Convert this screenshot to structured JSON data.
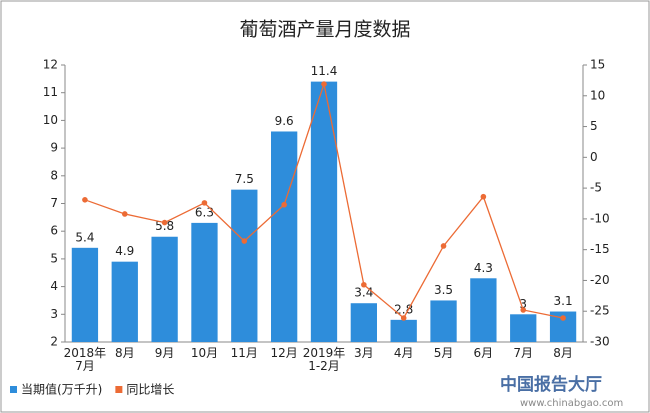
{
  "chart_data": {
    "type": "bar-line",
    "title": "葡萄酒产量月度数据",
    "categories": [
      "2018年\n7月",
      "8月",
      "9月",
      "10月",
      "11月",
      "12月",
      "2019年\n1-2月",
      "3月",
      "4月",
      "5月",
      "6月",
      "7月",
      "8月"
    ],
    "series": [
      {
        "name": "当期值(万千升)",
        "type": "bar",
        "color": "#2e8ddb",
        "values": [
          5.4,
          4.9,
          5.8,
          6.3,
          7.5,
          9.6,
          11.4,
          3.4,
          2.8,
          3.5,
          4.3,
          3,
          3.1
        ]
      },
      {
        "name": "同比增长",
        "type": "line",
        "axis": "y2",
        "color": "#ec6b35",
        "values": [
          -6.9,
          -9.2,
          -10.6,
          -7.4,
          -13.6,
          -7.7,
          11.9,
          -20.7,
          -26.1,
          -14.4,
          -6.4,
          -24.8,
          -26.1
        ]
      }
    ],
    "ylim": [
      2,
      12
    ],
    "yticks": [
      2,
      3,
      4,
      5,
      6,
      7,
      8,
      9,
      10,
      11,
      12
    ],
    "y2lim": [
      -30,
      15
    ],
    "y2ticks": [
      -30,
      -25,
      -20,
      -15,
      -10,
      -5,
      0,
      5,
      10,
      15
    ],
    "legend": "bottom-left"
  },
  "watermark": {
    "name": "中国报告大厅",
    "url": "www.chinabgao.com"
  }
}
